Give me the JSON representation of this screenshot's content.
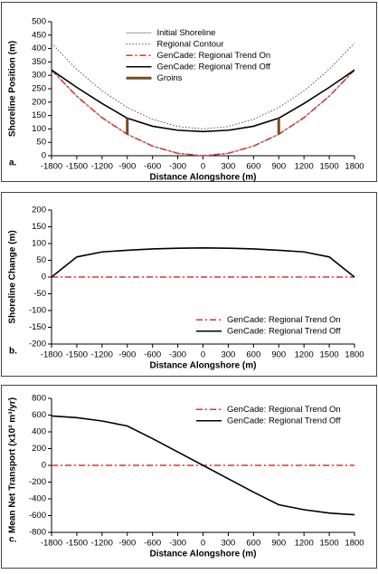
{
  "chart_data": [
    {
      "type": "line",
      "panel_label": "a.",
      "xlabel": "Distance Alongshore (m)",
      "ylabel": "Shoreline Position (m)",
      "x": [
        -1800,
        -1500,
        -1200,
        -900,
        -600,
        -300,
        0,
        300,
        600,
        900,
        1200,
        1500,
        1800
      ],
      "xlim": [
        -1800,
        1800
      ],
      "xticks": [
        -1800,
        -1500,
        -1200,
        -900,
        -600,
        -300,
        0,
        300,
        600,
        900,
        1200,
        1500,
        1800
      ],
      "ylim": [
        0,
        500
      ],
      "yticks": [
        0,
        50,
        100,
        150,
        200,
        250,
        300,
        350,
        400,
        450,
        500
      ],
      "legend": "upper center",
      "series": [
        {
          "name": "Initial Shoreline",
          "color": "#9a9a9a",
          "style": "solid",
          "width": 1,
          "values": [
            320,
            222,
            142,
            80,
            36,
            9,
            0,
            9,
            36,
            80,
            142,
            222,
            320
          ]
        },
        {
          "name": "Regional Contour",
          "color": "#555555",
          "style": "dotted",
          "width": 1,
          "values": [
            420,
            322,
            242,
            180,
            136,
            109,
            100,
            109,
            136,
            180,
            242,
            322,
            420
          ]
        },
        {
          "name": "GenCade: Regional Trend On",
          "color": "#e03030",
          "style": "dashdot",
          "width": 1.6,
          "values": [
            320,
            222,
            142,
            80,
            36,
            9,
            0,
            9,
            36,
            80,
            142,
            222,
            320
          ]
        },
        {
          "name": "GenCade: Regional Trend Off",
          "color": "#000000",
          "style": "solid",
          "width": 1.6,
          "values": [
            320,
            255,
            195,
            140,
            110,
            95,
            90,
            95,
            110,
            140,
            195,
            255,
            320
          ]
        },
        {
          "name": "Groins",
          "color": "#7a4a1e",
          "style": "solid",
          "width": 3,
          "x": [
            -900,
            -900,
            null,
            900,
            900
          ],
          "values": [
            80,
            140,
            null,
            80,
            140
          ]
        }
      ]
    },
    {
      "type": "line",
      "panel_label": "b.",
      "xlabel": "Distance Alongshore (m)",
      "ylabel": "Shoreline Change (m)",
      "x": [
        -1800,
        -1500,
        -1200,
        -900,
        -600,
        -300,
        0,
        300,
        600,
        900,
        1200,
        1500,
        1800
      ],
      "xlim": [
        -1800,
        1800
      ],
      "xticks": [
        -1800,
        -1500,
        -1200,
        -900,
        -600,
        -300,
        0,
        300,
        600,
        900,
        1200,
        1500,
        1800
      ],
      "ylim": [
        -200,
        200
      ],
      "yticks": [
        -200,
        -150,
        -100,
        -50,
        0,
        50,
        100,
        150,
        200
      ],
      "legend": "lower right",
      "series": [
        {
          "name": "GenCade: Regional Trend On",
          "color": "#e03030",
          "style": "dashdot",
          "width": 1.6,
          "values": [
            0,
            0,
            0,
            0,
            0,
            0,
            0,
            0,
            0,
            0,
            0,
            0,
            0
          ]
        },
        {
          "name": "GenCade: Regional Trend Off",
          "color": "#000000",
          "style": "solid",
          "width": 1.6,
          "values": [
            0,
            60,
            75,
            80,
            84,
            86,
            87,
            86,
            84,
            80,
            75,
            60,
            0
          ]
        }
      ]
    },
    {
      "type": "line",
      "panel_label": "c.",
      "xlabel": "Distance Alongshore (m)",
      "ylabel": "Mean Net Transport (x10³ m³/yr)",
      "x": [
        -1800,
        -1500,
        -1200,
        -900,
        -600,
        -300,
        0,
        300,
        600,
        900,
        1200,
        1500,
        1800
      ],
      "xlim": [
        -1800,
        1800
      ],
      "xticks": [
        -1800,
        -1500,
        -1200,
        -900,
        -600,
        -300,
        0,
        300,
        600,
        900,
        1200,
        1500,
        1800
      ],
      "ylim": [
        -800,
        800
      ],
      "yticks": [
        -800,
        -600,
        -400,
        -200,
        0,
        200,
        400,
        600,
        800
      ],
      "legend": "upper right",
      "series": [
        {
          "name": "GenCade: Regional Trend On",
          "color": "#e03030",
          "style": "dashdot",
          "width": 1.6,
          "values": [
            0,
            0,
            0,
            0,
            0,
            0,
            0,
            0,
            0,
            0,
            0,
            0,
            0
          ]
        },
        {
          "name": "GenCade: Regional Trend Off",
          "color": "#000000",
          "style": "solid",
          "width": 1.6,
          "values": [
            590,
            570,
            530,
            470,
            320,
            160,
            0,
            -160,
            -320,
            -470,
            -530,
            -570,
            -590
          ]
        }
      ]
    }
  ]
}
